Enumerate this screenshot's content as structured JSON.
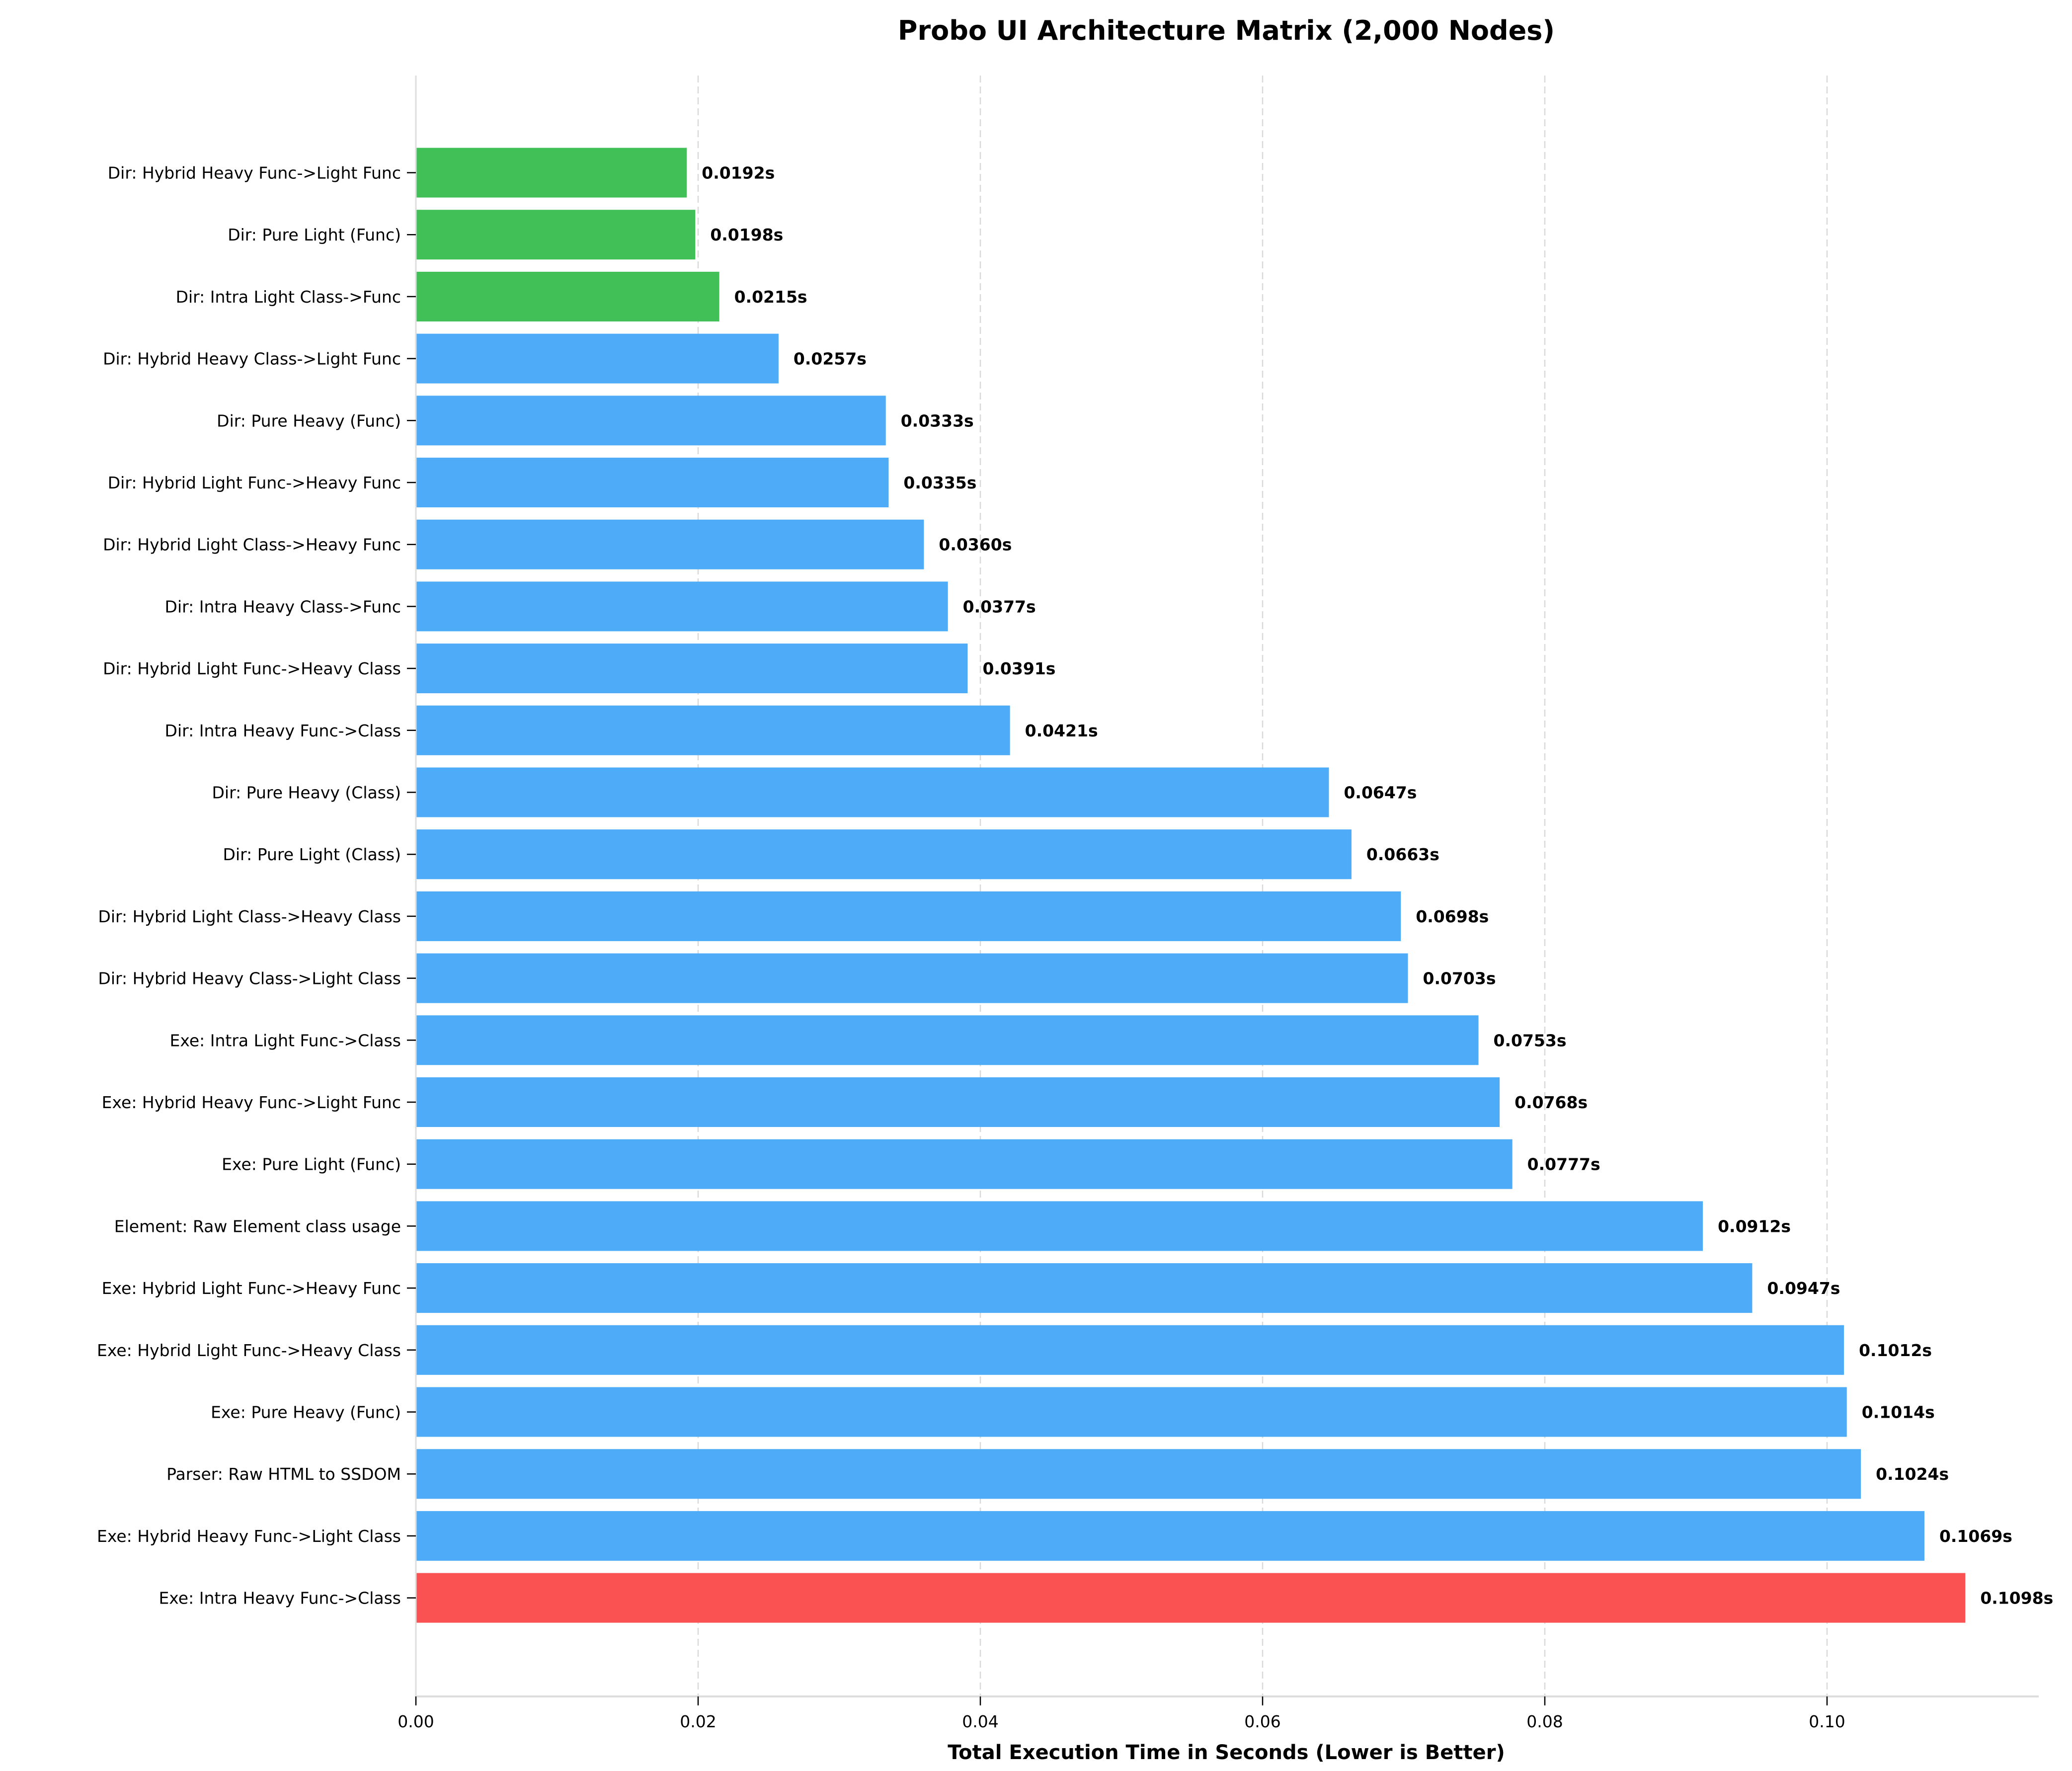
{
  "chart_data": {
    "type": "bar",
    "orientation": "horizontal",
    "title": "Probo UI Architecture Matrix (2,000 Nodes)",
    "xlabel": "Total Execution Time in Seconds (Lower is Better)",
    "ylabel": "",
    "xlim": [
      0,
      0.115
    ],
    "xticks": [
      "0.00",
      "0.02",
      "0.04",
      "0.06",
      "0.08",
      "0.10"
    ],
    "grid": "x-dashed",
    "value_suffix": "s",
    "colors": {
      "fastest": "#40c057",
      "default": "#4dabf7",
      "slowest": "#fa5252"
    },
    "categories": [
      "Dir: Hybrid Heavy Func->Light Func",
      "Dir: Pure Light (Func)",
      "Dir: Intra Light Class->Func",
      "Dir: Hybrid Heavy Class->Light Func",
      "Dir: Pure Heavy (Func)",
      "Dir: Hybrid Light Func->Heavy Func",
      "Dir: Hybrid Light Class->Heavy Func",
      "Dir: Intra Heavy Class->Func",
      "Dir: Hybrid Light Func->Heavy Class",
      "Dir: Intra Heavy Func->Class",
      "Dir: Pure Heavy (Class)",
      "Dir: Pure Light (Class)",
      "Dir: Hybrid Light Class->Heavy Class",
      "Dir: Hybrid Heavy Class->Light Class",
      "Exe: Intra Light Func->Class",
      "Exe: Hybrid Heavy Func->Light Func",
      "Exe: Pure Light (Func)",
      "Element: Raw Element class usage",
      "Exe: Hybrid Light Func->Heavy Func",
      "Exe: Hybrid Light Func->Heavy Class",
      "Exe: Pure Heavy (Func)",
      "Parser: Raw HTML to SSDOM",
      "Exe: Hybrid Heavy Func->Light Class",
      "Exe: Intra Heavy Func->Class"
    ],
    "values": [
      0.0192,
      0.0198,
      0.0215,
      0.0257,
      0.0333,
      0.0335,
      0.036,
      0.0377,
      0.0391,
      0.0421,
      0.0647,
      0.0663,
      0.0698,
      0.0703,
      0.0753,
      0.0768,
      0.0777,
      0.0912,
      0.0947,
      0.1012,
      0.1014,
      0.1024,
      0.1069,
      0.1098
    ],
    "value_labels": [
      "0.0192s",
      "0.0198s",
      "0.0215s",
      "0.0257s",
      "0.0333s",
      "0.0335s",
      "0.0360s",
      "0.0377s",
      "0.0391s",
      "0.0421s",
      "0.0647s",
      "0.0663s",
      "0.0698s",
      "0.0703s",
      "0.0753s",
      "0.0768s",
      "0.0777s",
      "0.0912s",
      "0.0947s",
      "0.1012s",
      "0.1014s",
      "0.1024s",
      "0.1069s",
      "0.1098s"
    ],
    "bar_colors": [
      "fastest",
      "fastest",
      "fastest",
      "default",
      "default",
      "default",
      "default",
      "default",
      "default",
      "default",
      "default",
      "default",
      "default",
      "default",
      "default",
      "default",
      "default",
      "default",
      "default",
      "default",
      "default",
      "default",
      "default",
      "slowest"
    ]
  }
}
